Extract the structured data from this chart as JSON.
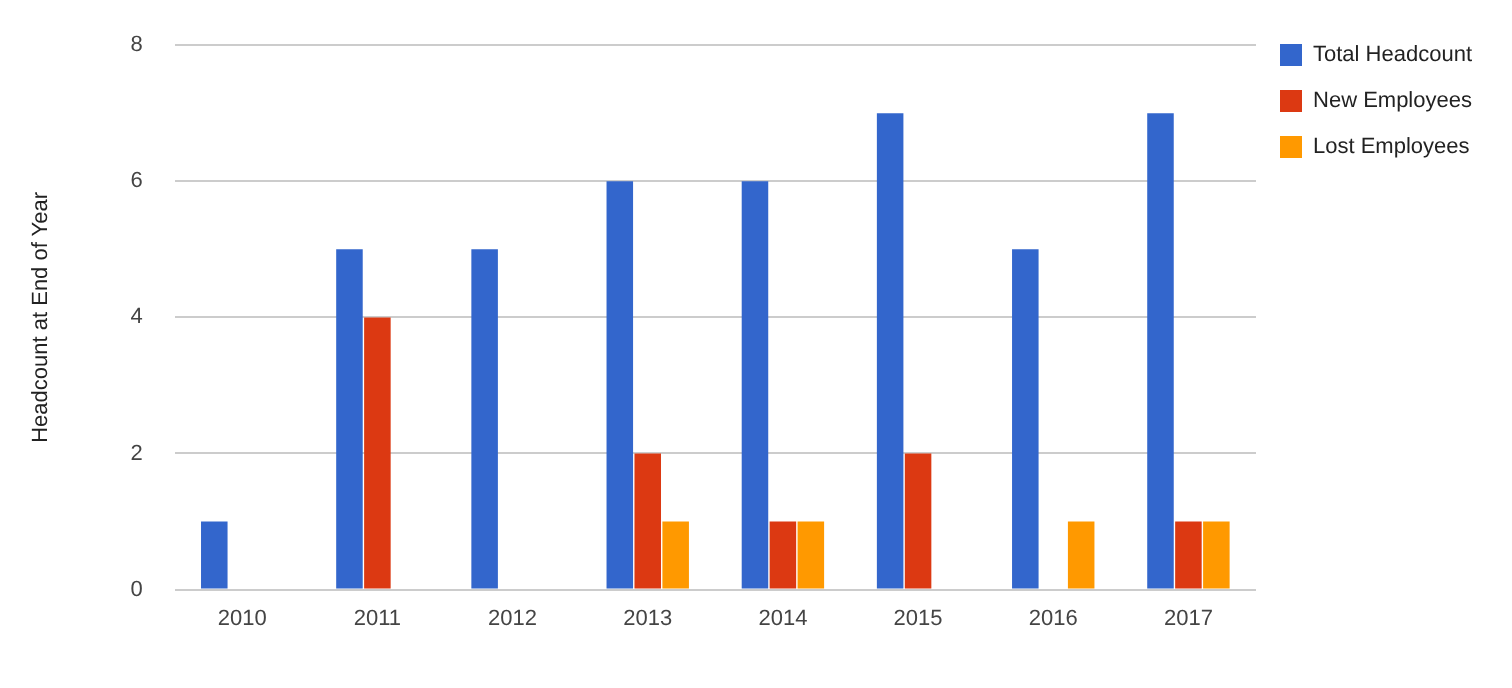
{
  "chart_data": {
    "type": "bar",
    "ylabel": "Headcount at End of Year",
    "categories": [
      "2010",
      "2011",
      "2012",
      "2013",
      "2014",
      "2015",
      "2016",
      "2017"
    ],
    "series": [
      {
        "name": "Total Headcount",
        "color": "#3366cc",
        "values": [
          1,
          5,
          5,
          6,
          6,
          7,
          5,
          7
        ]
      },
      {
        "name": "New Employees",
        "color": "#dc3912",
        "values": [
          0,
          4,
          0,
          2,
          1,
          2,
          0,
          1
        ]
      },
      {
        "name": "Lost Employees",
        "color": "#ff9900",
        "values": [
          0,
          0,
          0,
          1,
          1,
          0,
          1,
          1
        ]
      }
    ],
    "ylim": [
      0,
      8
    ],
    "yticks": [
      0,
      2,
      4,
      6,
      8
    ],
    "grid": "y",
    "legend": "top right"
  }
}
